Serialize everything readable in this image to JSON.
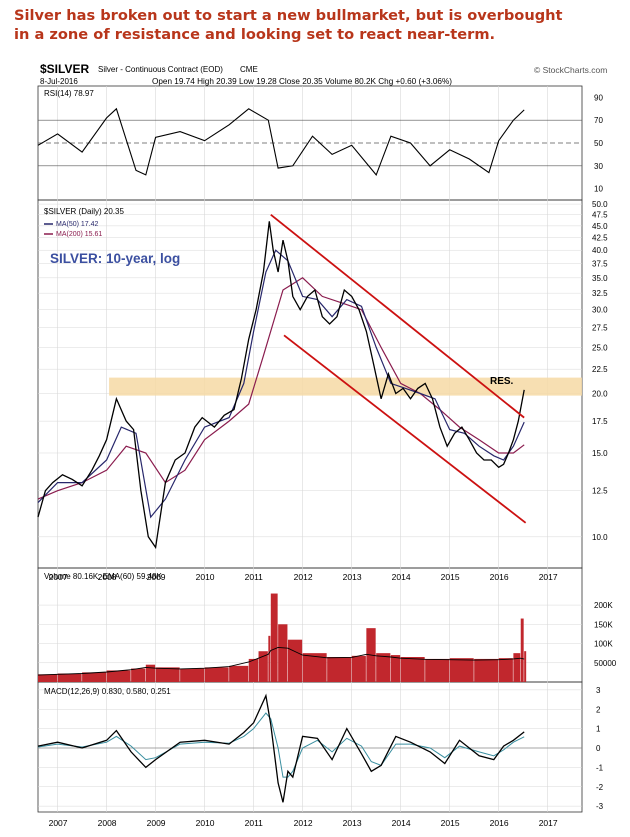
{
  "headline": {
    "line1": "Silver has broken out to start a new bullmarket, but is overbought",
    "line2": "in a zone of resistance and looking set to react near-term."
  },
  "header": {
    "symbol": "$SILVER",
    "name": "Silver - Continuous Contract (EOD)",
    "exchange": "CME",
    "date": "8-Jul-2016",
    "ohlc": "Open 19.74  High 20.39  Low 19.28  Close 20.35  Volume 80.2K  Chg +0.60 (+3.06%)",
    "watermark": "© StockCharts.com"
  },
  "colors": {
    "headline": "#b8361b",
    "price": "#000000",
    "ma50": "#27276b",
    "ma200": "#8a1c4e",
    "channel": "#cc1111",
    "resistance": "#f6d9a4",
    "volume": "#c1272d",
    "macd_signal": "#3a8fa0",
    "annotation_blue": "#3b4fa0",
    "panel_bg": "#ffffff",
    "grid": "#d9d9d9"
  },
  "chart_data": [
    {
      "type": "line",
      "title": "RSI(14) 78.97",
      "legend": "RSI(14) 78.97",
      "ylim": [
        0,
        100
      ],
      "yticks": [
        10,
        30,
        50,
        70,
        90
      ],
      "reference_lines": [
        30,
        50,
        70
      ],
      "x": [
        2006.6,
        2007.0,
        2007.5,
        2008.0,
        2008.2,
        2008.6,
        2008.8,
        2009.0,
        2009.5,
        2010.0,
        2010.5,
        2010.9,
        2011.3,
        2011.5,
        2011.8,
        2012.2,
        2012.6,
        2013.0,
        2013.5,
        2013.8,
        2014.2,
        2014.6,
        2015.0,
        2015.4,
        2015.8,
        2016.0,
        2016.3,
        2016.52
      ],
      "values": [
        48,
        58,
        42,
        72,
        80,
        26,
        22,
        55,
        60,
        52,
        66,
        80,
        70,
        28,
        30,
        56,
        40,
        48,
        22,
        56,
        50,
        30,
        44,
        36,
        24,
        52,
        70,
        79
      ]
    },
    {
      "type": "line",
      "scale": "log",
      "title": "$SILVER (Daily) 20.35",
      "annotation": "SILVER: 10-year, log",
      "resistance_label": "RES.",
      "resistance_zone": [
        19.8,
        21.6
      ],
      "ylim": [
        8.6,
        51
      ],
      "yticks": [
        10.0,
        12.5,
        15.0,
        17.5,
        20.0,
        22.5,
        25.0,
        27.5,
        30.0,
        32.5,
        35.0,
        37.5,
        40.0,
        42.5,
        45.0,
        47.5,
        50.0
      ],
      "xlim": [
        2006.6,
        2017.7
      ],
      "xticks": [
        2007,
        2008,
        2009,
        2010,
        2011,
        2012,
        2013,
        2014,
        2015,
        2016,
        2017
      ],
      "legend_position": "top-left",
      "series": [
        {
          "name": "$SILVER (Daily) 20.35",
          "x": [
            2006.6,
            2006.75,
            2006.9,
            2007.1,
            2007.3,
            2007.5,
            2007.7,
            2007.85,
            2008.0,
            2008.2,
            2008.4,
            2008.55,
            2008.7,
            2008.85,
            2009.0,
            2009.2,
            2009.4,
            2009.6,
            2009.8,
            2009.95,
            2010.2,
            2010.4,
            2010.6,
            2010.75,
            2010.9,
            2011.05,
            2011.2,
            2011.32,
            2011.4,
            2011.5,
            2011.6,
            2011.7,
            2011.8,
            2011.95,
            2012.1,
            2012.25,
            2012.4,
            2012.55,
            2012.7,
            2012.85,
            2013.0,
            2013.15,
            2013.3,
            2013.45,
            2013.6,
            2013.75,
            2013.9,
            2014.05,
            2014.2,
            2014.35,
            2014.5,
            2014.65,
            2014.8,
            2014.95,
            2015.1,
            2015.25,
            2015.4,
            2015.55,
            2015.7,
            2015.85,
            2016.0,
            2016.1,
            2016.2,
            2016.3,
            2016.4,
            2016.52
          ],
          "values": [
            11.0,
            12.5,
            13.0,
            13.5,
            13.2,
            12.8,
            13.8,
            14.8,
            16.0,
            19.5,
            17.5,
            16.8,
            12.5,
            10.0,
            9.5,
            13.0,
            14.5,
            15.0,
            17.0,
            17.8,
            17.0,
            18.0,
            18.5,
            21.5,
            26.0,
            30.0,
            36.0,
            46.0,
            40.0,
            36.0,
            42.0,
            38.0,
            32.0,
            30.0,
            32.0,
            33.0,
            29.0,
            28.0,
            29.0,
            33.0,
            32.0,
            30.0,
            27.0,
            23.0,
            19.5,
            22.0,
            20.0,
            20.5,
            19.5,
            20.5,
            21.0,
            19.5,
            17.0,
            15.5,
            16.5,
            17.0,
            16.0,
            15.0,
            14.5,
            14.5,
            14.0,
            14.2,
            15.0,
            16.0,
            17.5,
            20.35
          ]
        },
        {
          "name": "MA(50) 17.42",
          "x": [
            2006.6,
            2007.0,
            2007.5,
            2008.0,
            2008.3,
            2008.6,
            2008.9,
            2009.2,
            2009.6,
            2010.0,
            2010.5,
            2010.8,
            2011.0,
            2011.25,
            2011.45,
            2011.7,
            2012.0,
            2012.3,
            2012.6,
            2012.9,
            2013.2,
            2013.5,
            2013.8,
            2014.1,
            2014.4,
            2014.7,
            2015.0,
            2015.3,
            2015.6,
            2015.9,
            2016.1,
            2016.3,
            2016.52
          ],
          "values": [
            11.8,
            13.0,
            13.0,
            14.5,
            17.0,
            16.5,
            11.0,
            12.0,
            14.5,
            17.0,
            17.8,
            21.0,
            27.0,
            36.0,
            40.0,
            38.0,
            32.0,
            31.5,
            29.0,
            31.5,
            30.5,
            25.0,
            21.0,
            20.5,
            20.0,
            19.5,
            16.8,
            16.5,
            15.5,
            14.8,
            14.5,
            15.5,
            17.42
          ]
        },
        {
          "name": "MA(200) 15.61",
          "x": [
            2006.6,
            2007.0,
            2007.5,
            2008.0,
            2008.4,
            2008.8,
            2009.2,
            2009.6,
            2010.0,
            2010.5,
            2010.9,
            2011.2,
            2011.6,
            2012.0,
            2012.4,
            2012.8,
            2013.2,
            2013.6,
            2014.0,
            2014.4,
            2014.8,
            2015.2,
            2015.6,
            2016.0,
            2016.3,
            2016.52
          ],
          "values": [
            12.0,
            12.5,
            13.0,
            13.8,
            15.5,
            15.0,
            13.0,
            13.8,
            16.0,
            17.5,
            19.0,
            24.0,
            33.0,
            35.0,
            32.0,
            31.0,
            30.0,
            25.0,
            21.0,
            20.0,
            18.5,
            17.0,
            16.0,
            15.0,
            15.0,
            15.61
          ]
        }
      ],
      "channel_lines": [
        {
          "from": [
            2011.35,
            47.5
          ],
          "to": [
            2016.52,
            17.8
          ]
        },
        {
          "from": [
            2011.62,
            26.5
          ],
          "to": [
            2016.55,
            10.7
          ]
        }
      ]
    },
    {
      "type": "bar",
      "title": "Volume 80.16K, EMA(60) 59.48K",
      "legend": "Volume 80.16K, EMA(60) 59.48K",
      "ylim": [
        0,
        260000
      ],
      "ytick_labels": [
        "50000",
        "100K",
        "150K",
        "200K"
      ],
      "yticks": [
        50000,
        100000,
        150000,
        200000
      ],
      "x": [
        2006.6,
        2007.0,
        2007.5,
        2008.0,
        2008.5,
        2008.8,
        2009.0,
        2009.5,
        2010.0,
        2010.5,
        2010.9,
        2011.1,
        2011.3,
        2011.35,
        2011.5,
        2011.7,
        2012.0,
        2012.5,
        2013.0,
        2013.3,
        2013.5,
        2013.8,
        2014.0,
        2014.5,
        2015.0,
        2015.5,
        2016.0,
        2016.3,
        2016.45,
        2016.52
      ],
      "values": [
        20000,
        22000,
        25000,
        30000,
        35000,
        45000,
        38000,
        35000,
        38000,
        42000,
        60000,
        80000,
        120000,
        230000,
        150000,
        110000,
        75000,
        65000,
        68000,
        140000,
        75000,
        70000,
        65000,
        60000,
        62000,
        60000,
        62000,
        75000,
        165000,
        80160
      ],
      "ema": [
        18000,
        20000,
        22000,
        26000,
        32000,
        38000,
        36000,
        34000,
        36000,
        40000,
        52000,
        62000,
        72000,
        82000,
        90000,
        88000,
        70000,
        63000,
        64000,
        72000,
        68000,
        65000,
        62000,
        59000,
        58000,
        57000,
        58000,
        60000,
        62000,
        59480
      ]
    },
    {
      "type": "line",
      "title": "MACD(12,26,9) 0.830, 0.580, 0.251",
      "legend": "MACD(12,26,9) 0.830, 0.580, 0.251",
      "ylim": [
        -3.2,
        3.2
      ],
      "yticks": [
        -3,
        -2,
        -1,
        0,
        1,
        2,
        3
      ],
      "x": [
        2006.6,
        2007.0,
        2007.5,
        2008.0,
        2008.2,
        2008.5,
        2008.8,
        2009.0,
        2009.5,
        2010.0,
        2010.5,
        2010.8,
        2011.0,
        2011.25,
        2011.35,
        2011.5,
        2011.6,
        2011.7,
        2011.8,
        2012.0,
        2012.3,
        2012.6,
        2012.9,
        2013.2,
        2013.4,
        2013.6,
        2013.9,
        2014.2,
        2014.6,
        2014.9,
        2015.2,
        2015.6,
        2015.9,
        2016.1,
        2016.3,
        2016.52
      ],
      "values": [
        0.1,
        0.3,
        0.0,
        0.4,
        0.9,
        -0.2,
        -1.0,
        -0.6,
        0.3,
        0.4,
        0.2,
        0.8,
        1.3,
        2.7,
        1.2,
        -1.8,
        -2.8,
        -1.2,
        -1.5,
        0.6,
        0.5,
        -0.6,
        1.0,
        -0.3,
        -1.2,
        -0.9,
        0.6,
        0.3,
        -0.2,
        -0.8,
        0.4,
        -0.4,
        -0.6,
        0.1,
        0.4,
        0.83
      ],
      "signal": [
        0.05,
        0.2,
        0.05,
        0.3,
        0.6,
        0.1,
        -0.6,
        -0.5,
        0.2,
        0.3,
        0.25,
        0.6,
        1.0,
        1.8,
        1.5,
        0.0,
        -1.5,
        -1.5,
        -1.2,
        0.0,
        0.4,
        -0.2,
        0.5,
        0.1,
        -0.7,
        -0.9,
        0.2,
        0.2,
        0.0,
        -0.5,
        0.1,
        -0.2,
        -0.4,
        -0.1,
        0.3,
        0.58
      ],
      "histogram_last": 0.251
    }
  ],
  "x_axis_labels": [
    "2007",
    "2008",
    "2009",
    "2010",
    "2011",
    "2012",
    "2013",
    "2014",
    "2015",
    "2016",
    "2017"
  ]
}
